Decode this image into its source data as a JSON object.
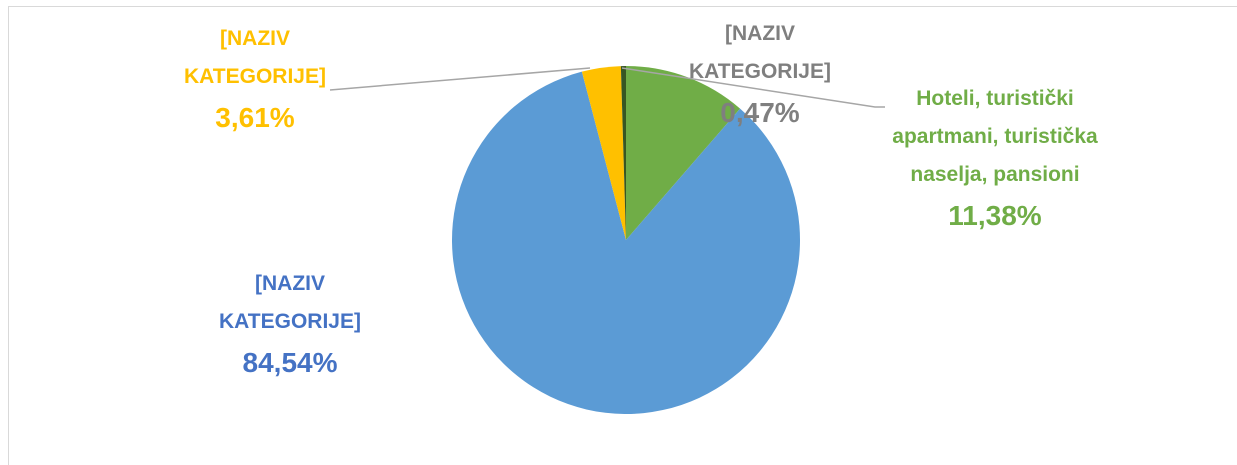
{
  "chart_data": {
    "type": "pie",
    "categories": [
      "Hoteli, turistički apartmani, turistička naselja, pansioni",
      "[NAZIV KATEGORIJE]",
      "[NAZIV KATEGORIJE]",
      "[NAZIV KATEGORIJE]"
    ],
    "values": [
      11.38,
      84.54,
      3.61,
      0.47
    ],
    "value_labels": [
      "11,38%",
      "84,54%",
      "3,61%",
      "0,47%"
    ],
    "colors": [
      "#70ad47",
      "#5b9bd5",
      "#ffc000",
      "#375623"
    ],
    "label_colors": [
      "#70ad47",
      "#4472c4",
      "#ffc000",
      "#7f7f7f"
    ]
  }
}
